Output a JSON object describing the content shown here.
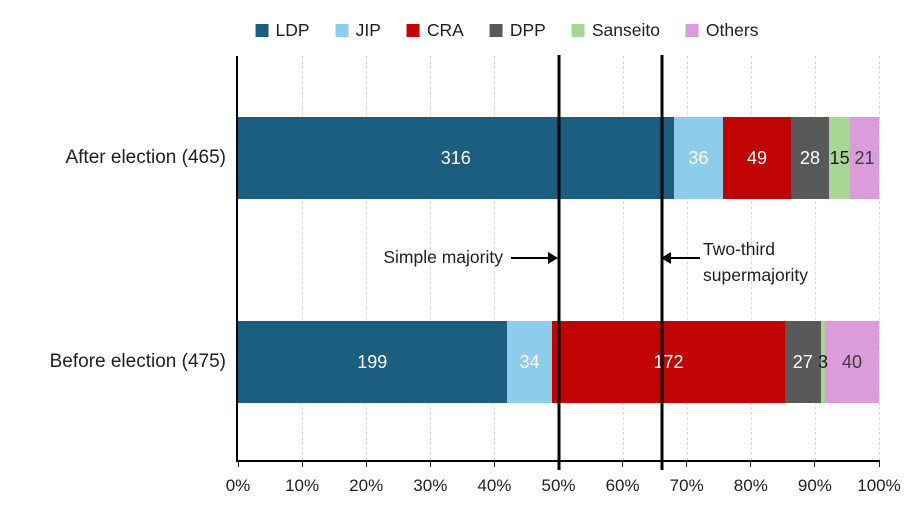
{
  "legend": {
    "items": [
      {
        "label": "LDP",
        "color": "#1B5E7F"
      },
      {
        "label": "JIP",
        "color": "#8DCDEB"
      },
      {
        "label": "CRA",
        "color": "#C00404"
      },
      {
        "label": "DPP",
        "color": "#595959"
      },
      {
        "label": "Sanseito",
        "color": "#A8D795"
      },
      {
        "label": "Others",
        "color": "#DC9BDB"
      }
    ]
  },
  "chart_data": {
    "type": "bar",
    "orientation": "horizontal-stacked",
    "unit": "seats",
    "categories": [
      "After election (465)",
      "Before election (475)"
    ],
    "totals": [
      465,
      475
    ],
    "series": [
      {
        "name": "LDP",
        "color": "#1B5E7F",
        "label_color": "#FFFFFF",
        "values": [
          316,
          199
        ]
      },
      {
        "name": "JIP",
        "color": "#8DCDEB",
        "label_color": "#FFFFFF",
        "values": [
          36,
          34
        ]
      },
      {
        "name": "CRA",
        "color": "#C00404",
        "label_color": "#FFFFFF",
        "values": [
          49,
          172
        ]
      },
      {
        "name": "DPP",
        "color": "#595959",
        "label_color": "#FFFFFF",
        "values": [
          28,
          27
        ]
      },
      {
        "name": "Sanseito",
        "color": "#A8D795",
        "label_color": "#1A1A1A",
        "values": [
          15,
          3
        ]
      },
      {
        "name": "Others",
        "color": "#DC9BDB",
        "label_color": "#3C3C3C",
        "values": [
          21,
          40
        ]
      }
    ],
    "x_axis": {
      "tick_labels": [
        "0%",
        "10%",
        "20%",
        "30%",
        "40%",
        "50%",
        "60%",
        "70%",
        "80%",
        "90%",
        "100%"
      ],
      "min": 0,
      "max": 100,
      "gridlines": "dashed"
    },
    "reference_lines": [
      {
        "label": "Simple majority",
        "position_pct": 50
      },
      {
        "label": "Two-third supermajority",
        "position_pct": 66.1
      }
    ]
  },
  "annotations": {
    "simple_majority": "Simple majority",
    "two_third_line1": "Two-third",
    "two_third_line2": "supermajority"
  }
}
